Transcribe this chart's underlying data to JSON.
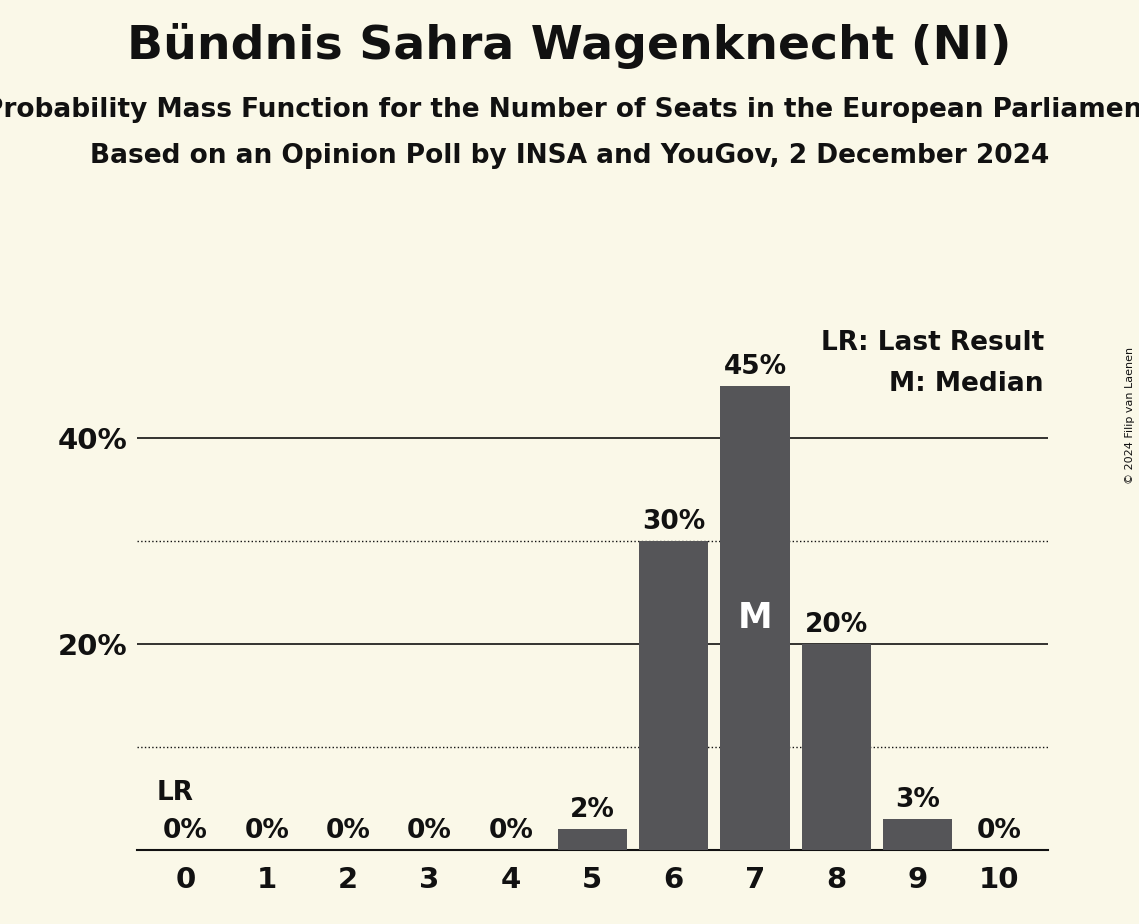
{
  "title": "Bündnis Sahra Wagenknecht (NI)",
  "subtitle1": "Probability Mass Function for the Number of Seats in the European Parliament",
  "subtitle2": "Based on an Opinion Poll by INSA and YouGov, 2 December 2024",
  "copyright": "© 2024 Filip van Laenen",
  "seats": [
    0,
    1,
    2,
    3,
    4,
    5,
    6,
    7,
    8,
    9,
    10
  ],
  "probabilities": [
    0.0,
    0.0,
    0.0,
    0.0,
    0.0,
    0.02,
    0.3,
    0.45,
    0.2,
    0.03,
    0.0
  ],
  "median": 7,
  "last_result": 0,
  "bar_color": "#555558",
  "background_color": "#FAF8E8",
  "text_color": "#111111",
  "title_fontsize": 34,
  "subtitle_fontsize": 19,
  "label_fontsize": 19,
  "tick_fontsize": 21,
  "legend_fontsize": 19,
  "ylim": [
    0,
    0.52
  ],
  "yticks_solid": [
    0.2,
    0.4
  ],
  "ytick_labels_solid": [
    "20%",
    "40%"
  ],
  "dotted_gridlines": [
    0.1,
    0.3
  ],
  "lr_label": "LR",
  "median_label": "M",
  "lr_legend": "LR: Last Result",
  "m_legend": "M: Median"
}
